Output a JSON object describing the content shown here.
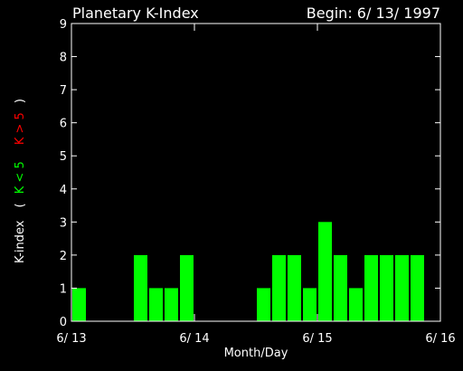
{
  "chart_data": {
    "type": "bar",
    "title": "Planetary K-Index",
    "subtitle": "Begin: 6/ 13/ 1997",
    "xlabel": "Month/Day",
    "ylabel": {
      "prefix": "K-index",
      "open": "(",
      "low_label": "K < 5",
      "high_label": "K > 5",
      "close": ")"
    },
    "ylim": [
      0,
      9
    ],
    "yticks": [
      0,
      1,
      2,
      3,
      4,
      5,
      6,
      7,
      8,
      9
    ],
    "xticks": [
      {
        "label": "6/ 13",
        "day": 0
      },
      {
        "label": "6/ 14",
        "day": 1
      },
      {
        "label": "6/ 15",
        "day": 2
      },
      {
        "label": "6/ 16",
        "day": 3
      }
    ],
    "interval_hours": 3,
    "values": [
      1,
      0,
      0,
      0,
      2,
      1,
      1,
      2,
      0,
      0,
      0,
      0,
      1,
      2,
      2,
      1,
      3,
      2,
      1,
      2,
      2,
      2,
      2,
      0
    ],
    "colors": {
      "background": "#000000",
      "axes": "#ffffff",
      "bar_low": "#00ff00",
      "bar_high": "#ff0000",
      "label_low": "#00ff00",
      "label_high": "#ff0000"
    },
    "threshold": 5
  }
}
